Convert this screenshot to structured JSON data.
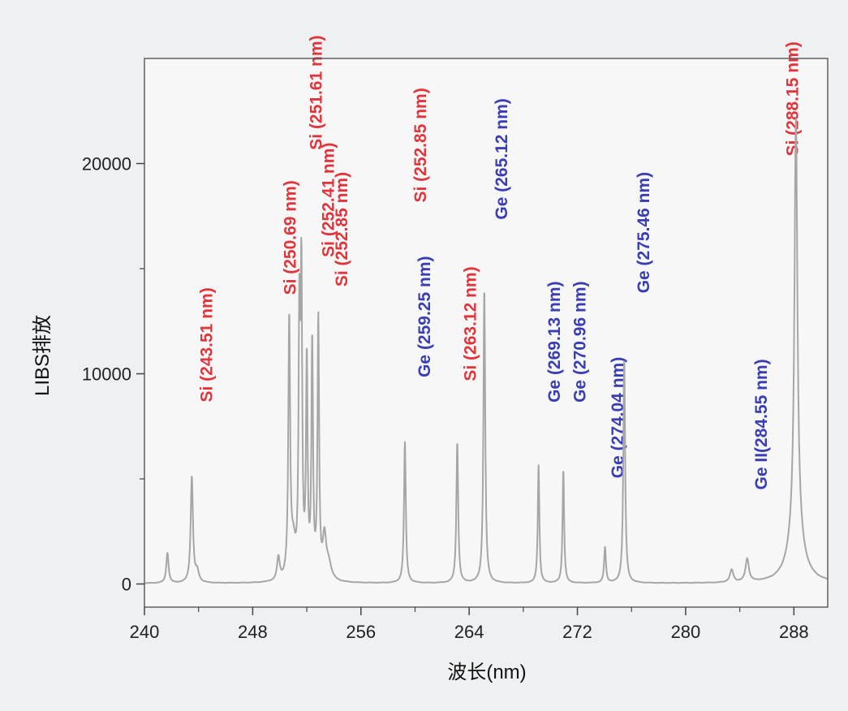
{
  "chart_data": {
    "type": "line",
    "title": "",
    "xlabel": "波长(nm)",
    "ylabel": "LIBS排放",
    "xlim": [
      240,
      290.5
    ],
    "ylim": [
      -1100,
      25000
    ],
    "x_ticks": [
      240,
      248,
      256,
      264,
      272,
      280,
      288
    ],
    "x_tick_labels": [
      "240",
      "248",
      "256",
      "264",
      "272",
      "280",
      "288"
    ],
    "y_ticks": [
      0,
      10000,
      20000
    ],
    "y_tick_labels": [
      "0",
      "10000",
      "20000"
    ],
    "grid": false,
    "legend": "none",
    "line_color": "#a6a6a6",
    "baseline": 30,
    "peaks": [
      {
        "x": 241.7,
        "y": 1450,
        "w": 0.1
      },
      {
        "x": 243.5,
        "y": 5050,
        "w": 0.1
      },
      {
        "x": 243.9,
        "y": 500,
        "w": 0.15
      },
      {
        "x": 249.9,
        "y": 1100,
        "w": 0.12
      },
      {
        "x": 250.7,
        "y": 12200,
        "w": 0.08
      },
      {
        "x": 251.0,
        "y": 1500,
        "w": 0.2
      },
      {
        "x": 251.45,
        "y": 11600,
        "w": 0.07
      },
      {
        "x": 251.6,
        "y": 13700,
        "w": 0.07
      },
      {
        "x": 252.0,
        "y": 10200,
        "w": 0.07
      },
      {
        "x": 252.4,
        "y": 11100,
        "w": 0.07
      },
      {
        "x": 252.85,
        "y": 12200,
        "w": 0.07
      },
      {
        "x": 253.3,
        "y": 1900,
        "w": 0.15
      },
      {
        "x": 253.6,
        "y": 800,
        "w": 0.25
      },
      {
        "x": 259.25,
        "y": 6700,
        "w": 0.08
      },
      {
        "x": 263.12,
        "y": 6700,
        "w": 0.08
      },
      {
        "x": 265.12,
        "y": 14000,
        "w": 0.08
      },
      {
        "x": 269.13,
        "y": 5600,
        "w": 0.07
      },
      {
        "x": 270.96,
        "y": 5400,
        "w": 0.07
      },
      {
        "x": 274.04,
        "y": 1700,
        "w": 0.08
      },
      {
        "x": 275.46,
        "y": 10700,
        "w": 0.08
      },
      {
        "x": 283.4,
        "y": 600,
        "w": 0.15
      },
      {
        "x": 284.55,
        "y": 1100,
        "w": 0.15
      },
      {
        "x": 288.15,
        "y": 19600,
        "w": 0.13
      },
      {
        "x": 288.15,
        "y": 2500,
        "w": 0.6
      }
    ],
    "annotations": [
      {
        "text": "Si (243.51 nm)",
        "x": 245.0,
        "top": 14100,
        "color": "#e0353b"
      },
      {
        "text": "Si (250.69 nm)",
        "x": 251.2,
        "top": 19200,
        "color": "#e0353b"
      },
      {
        "text": "Si (251.61 nm)",
        "x": 253.1,
        "top": 26100,
        "color": "#e0353b"
      },
      {
        "text": "Si (252.41 nm)",
        "x": 254.0,
        "top": 21000,
        "color": "#e0353b"
      },
      {
        "text": "Si (252.85 nm)",
        "x": 255.0,
        "top": 19600,
        "color": "#e0353b"
      },
      {
        "text": "Si (252.85 nm)",
        "x": 260.8,
        "top": 23600,
        "color": "#e0353b"
      },
      {
        "text": "Ge (259.25 nm)",
        "x": 261.1,
        "top": 15600,
        "color": "#3a3eb2"
      },
      {
        "text": "Si (263.12 nm)",
        "x": 264.5,
        "top": 15100,
        "color": "#e0353b"
      },
      {
        "text": "Ge (265.12 nm)",
        "x": 266.8,
        "top": 23100,
        "color": "#3a3eb2"
      },
      {
        "text": "Ge (269.13 nm)",
        "x": 270.7,
        "top": 14400,
        "color": "#3a3eb2"
      },
      {
        "text": "Ge (270.96 nm)",
        "x": 272.6,
        "top": 14400,
        "color": "#3a3eb2"
      },
      {
        "text": "Ge (274.04 nm)",
        "x": 275.4,
        "top": 10800,
        "color": "#3a3eb2"
      },
      {
        "text": "Ge (275.46 nm)",
        "x": 277.3,
        "top": 19600,
        "color": "#3a3eb2"
      },
      {
        "text": "Ge II(284.55 nm)",
        "x": 286.0,
        "top": 10700,
        "color": "#3a3eb2"
      },
      {
        "text": "Si (288.15 nm)",
        "x": 288.3,
        "top": 25800,
        "color": "#e0353b"
      }
    ]
  }
}
